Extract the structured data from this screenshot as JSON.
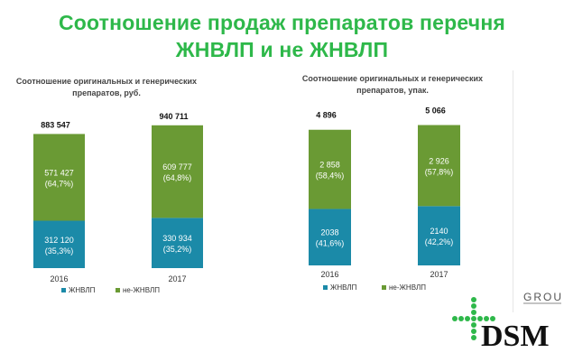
{
  "title": {
    "line1": "Соотношение продаж препаратов перечня",
    "line2": "ЖНВЛП и не ЖНВЛП"
  },
  "colors": {
    "title": "#2eb84a",
    "zhnvlp": "#1b8aa8",
    "ne_zhnvlp": "#6a9a34"
  },
  "chart_data": [
    {
      "type": "bar",
      "stacked": true,
      "title": "Соотношение оригинальных и генерических препаратов, руб.",
      "title_lines": [
        "Соотношение оригинальных и генерических",
        "препаратов, руб."
      ],
      "categories": [
        "2016",
        "2017"
      ],
      "totals": [
        883547,
        940711
      ],
      "total_labels": [
        "883 547",
        "940 711"
      ],
      "series": [
        {
          "name": "ЖНВЛП",
          "values": [
            312120,
            330934
          ],
          "labels": [
            [
              "312 120",
              "(35,3%)"
            ],
            [
              "330 934",
              "(35,2%)"
            ]
          ]
        },
        {
          "name": "не-ЖНВЛП",
          "values": [
            571427,
            609777
          ],
          "labels": [
            [
              "571 427",
              "(64,7%)"
            ],
            [
              "609 777",
              "(64,8%)"
            ]
          ]
        }
      ],
      "legend": "bottom",
      "ylim": [
        0,
        1100000
      ],
      "grid": false
    },
    {
      "type": "bar",
      "stacked": true,
      "title": "Соотношение оригинальных и генерических препаратов, упак.",
      "title_lines": [
        "Соотношение оригинальных и генерических",
        "препаратов, упак."
      ],
      "categories": [
        "2016",
        "2017"
      ],
      "totals": [
        4896,
        5066
      ],
      "total_labels": [
        "4 896",
        "5 066"
      ],
      "series": [
        {
          "name": "ЖНВЛП",
          "values": [
            2038,
            2140
          ],
          "labels": [
            [
              "2038",
              "(41,6%)"
            ],
            [
              "2140",
              "(42,2%)"
            ]
          ]
        },
        {
          "name": "не-ЖНВЛП",
          "values": [
            2858,
            2926
          ],
          "labels": [
            [
              "2 858",
              "(58,4%)"
            ],
            [
              "2 926",
              "(57,8%)"
            ]
          ]
        }
      ],
      "legend": "bottom",
      "ylim": [
        0,
        5800
      ],
      "grid": false
    }
  ],
  "logo": {
    "text": "DSM",
    "subtext": "GROUP",
    "icon": "green-dot-cross-icon"
  }
}
